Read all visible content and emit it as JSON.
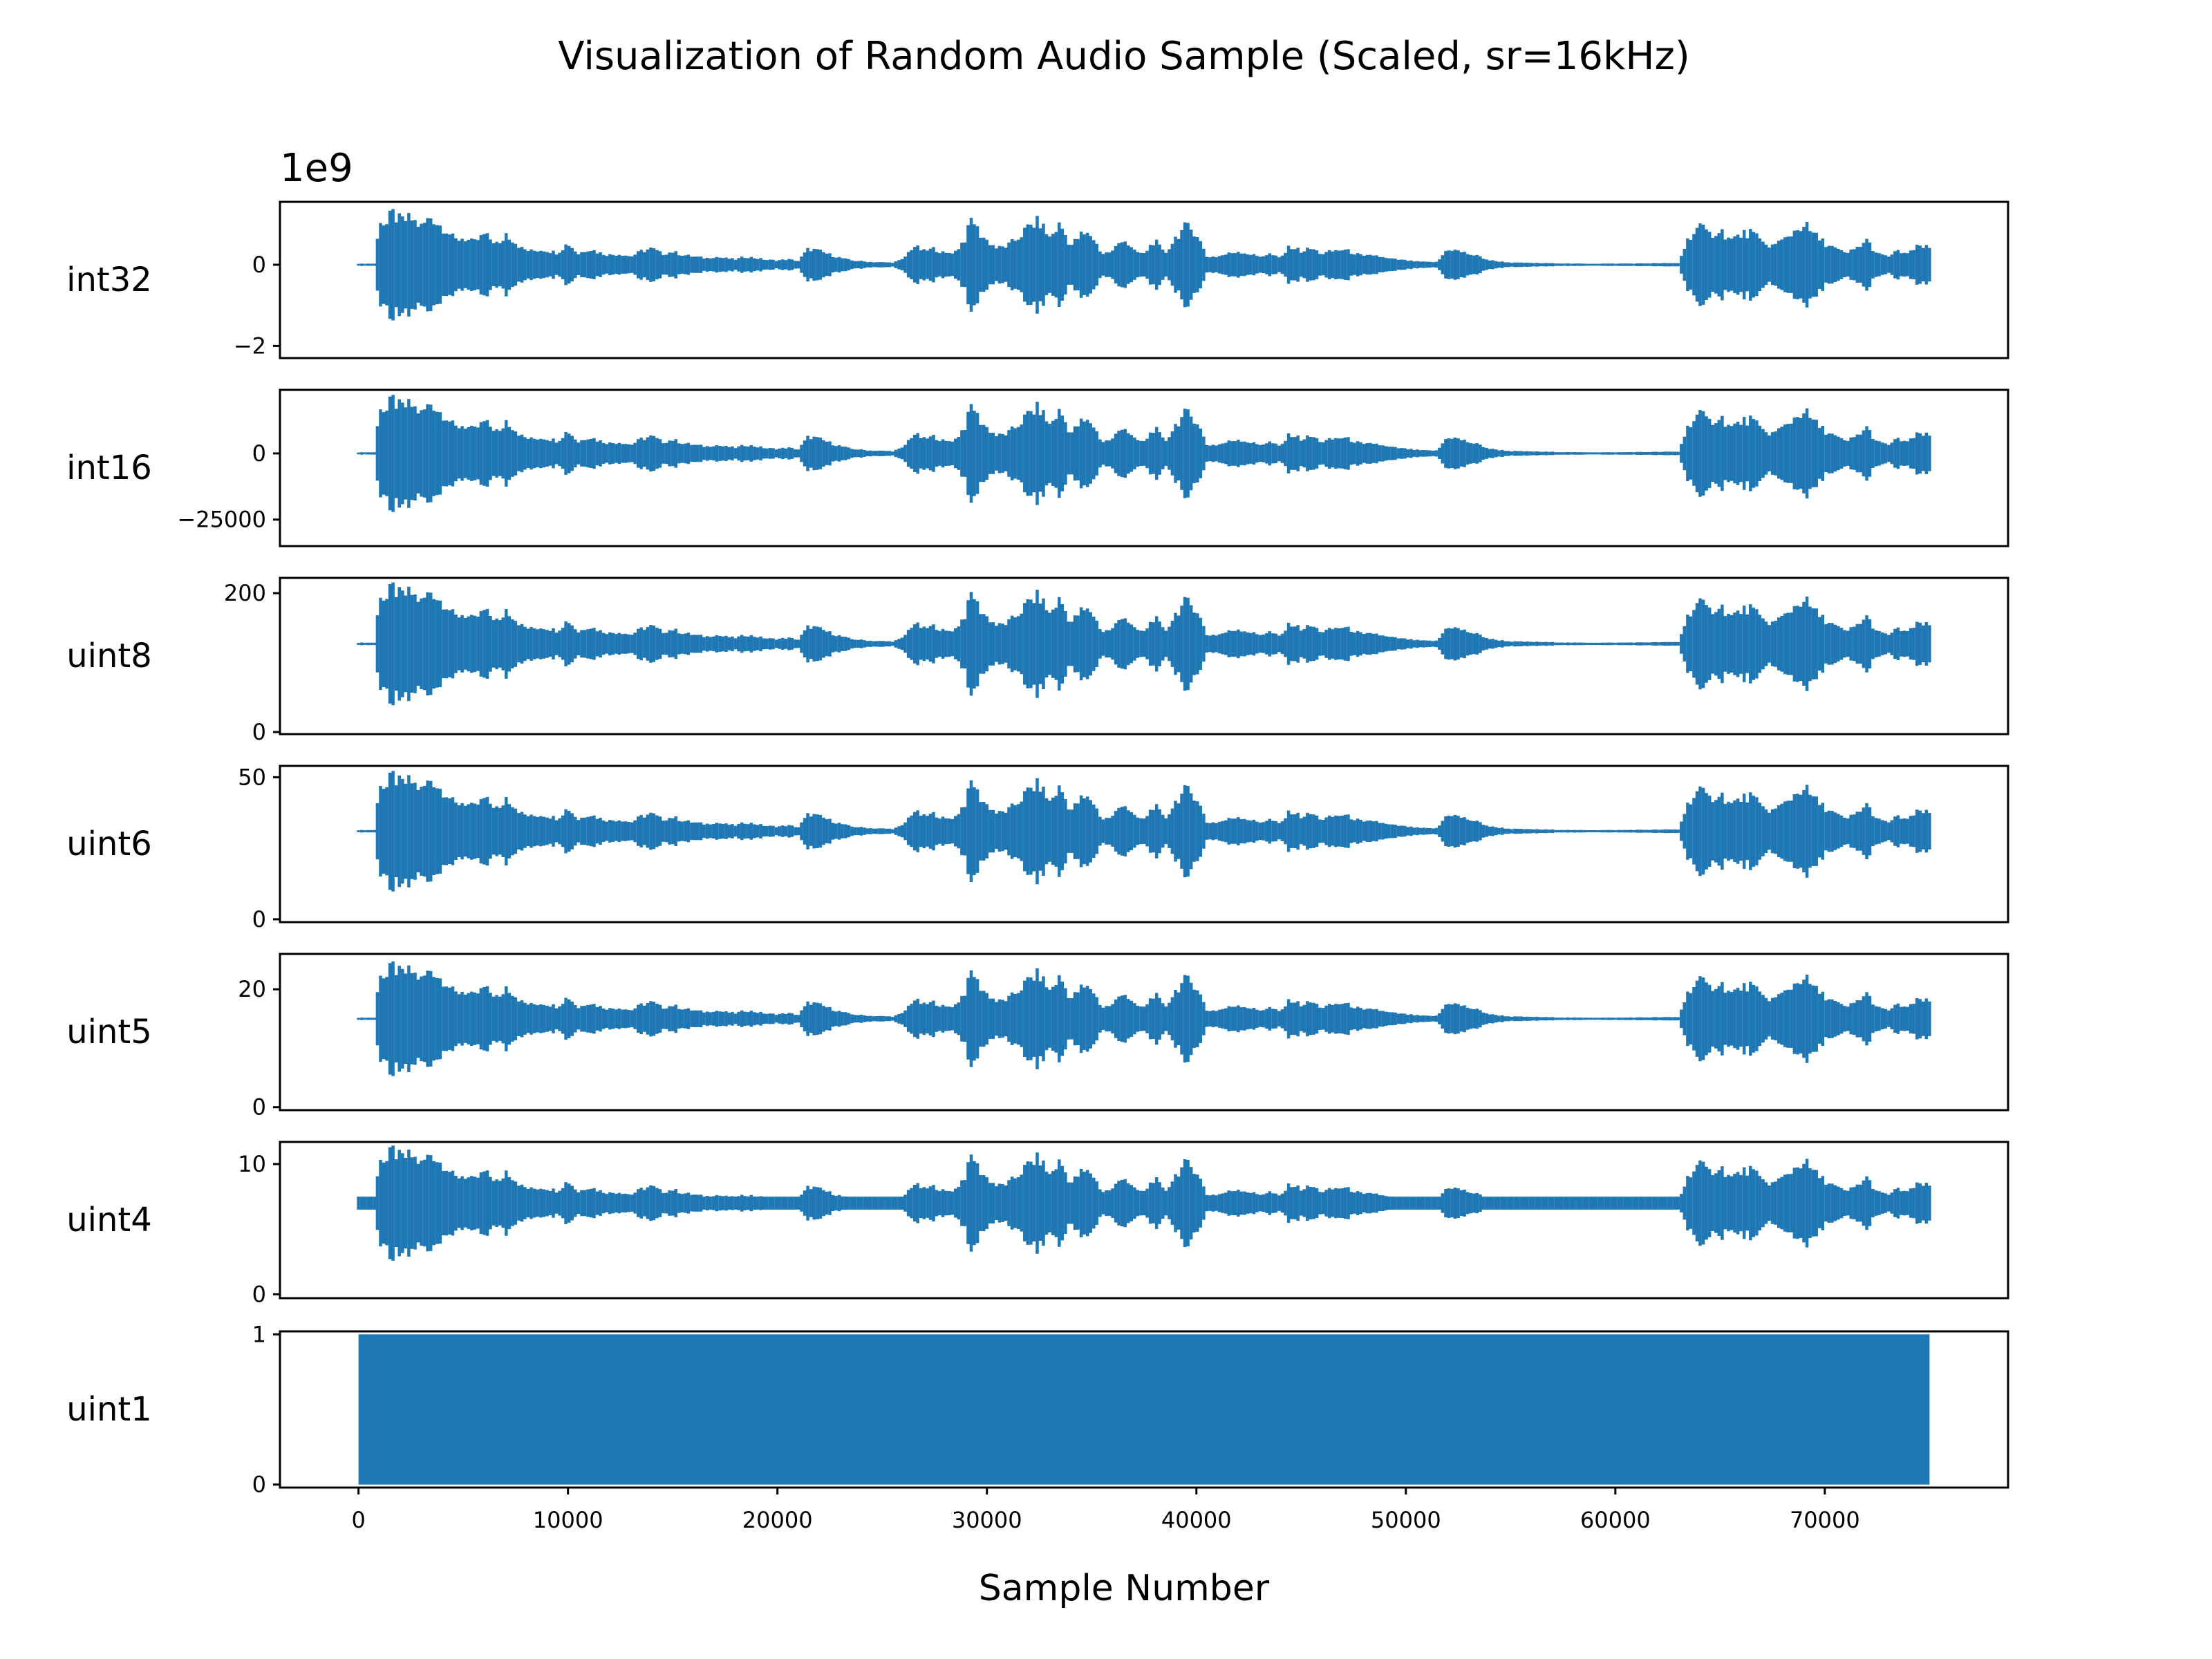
{
  "chart_data": {
    "type": "line",
    "title": "Visualization of Random Audio Sample (Scaled, sr=16kHz)",
    "xlabel": "Sample Number",
    "xlim": [
      -3750,
      78750
    ],
    "xticks": [
      0,
      10000,
      20000,
      30000,
      40000,
      50000,
      60000,
      70000
    ],
    "xtick_labels": [
      "0",
      "10000",
      "20000",
      "30000",
      "40000",
      "50000",
      "60000",
      "70000"
    ],
    "num_samples": 75000,
    "grid": false,
    "color": "#1f77b4",
    "envelope": {
      "x": [
        0,
        800,
        1000,
        1300,
        1600,
        2000,
        2500,
        3000,
        3500,
        3800,
        4200,
        4600,
        5000,
        5500,
        6000,
        6800,
        7000,
        7800,
        8200,
        8800,
        9500,
        10000,
        10500,
        11000,
        11500,
        12000,
        12500,
        13000,
        13500,
        14000,
        14500,
        15000,
        15500,
        16000,
        16600,
        17000,
        17500,
        18000,
        18500,
        19000,
        19500,
        20000,
        20500,
        21000,
        21500,
        22000,
        22800,
        23500,
        24500,
        25500,
        26000,
        26500,
        27000,
        27500,
        28000,
        28500,
        29000,
        29300,
        29600,
        30000,
        30500,
        31000,
        31500,
        32000,
        32500,
        33000,
        33500,
        34000,
        34500,
        35000,
        35500,
        36000,
        36500,
        37000,
        37500,
        38000,
        38500,
        39000,
        39500,
        40000,
        40500,
        41000,
        41500,
        42000,
        42500,
        43000,
        43500,
        44000,
        44500,
        45000,
        45500,
        46000,
        46500,
        47000,
        47500,
        48000,
        48500,
        49000,
        49500,
        50000,
        50500,
        51000,
        51500,
        52000,
        52500,
        53000,
        53500,
        54000,
        55000,
        58000,
        60000,
        63000,
        63500,
        64000,
        64500,
        65000,
        65500,
        66000,
        66500,
        67000,
        67500,
        68000,
        68500,
        69000,
        69500,
        70000,
        70500,
        71000,
        71500,
        72000,
        72500,
        73000,
        73500,
        74000,
        74500,
        75000
      ],
      "a": [
        0.02,
        0.02,
        0.9,
        0.7,
        0.95,
        0.8,
        0.85,
        0.7,
        0.9,
        0.75,
        0.65,
        0.45,
        0.5,
        0.4,
        0.55,
        0.35,
        0.6,
        0.3,
        0.25,
        0.28,
        0.22,
        0.4,
        0.2,
        0.3,
        0.22,
        0.18,
        0.2,
        0.15,
        0.25,
        0.3,
        0.2,
        0.24,
        0.18,
        0.15,
        0.12,
        0.15,
        0.12,
        0.1,
        0.15,
        0.12,
        0.09,
        0.08,
        0.1,
        0.07,
        0.3,
        0.25,
        0.15,
        0.08,
        0.05,
        0.04,
        0.1,
        0.35,
        0.25,
        0.3,
        0.2,
        0.25,
        0.5,
        0.9,
        0.6,
        0.45,
        0.3,
        0.35,
        0.5,
        0.7,
        0.8,
        0.5,
        0.75,
        0.35,
        0.55,
        0.55,
        0.2,
        0.25,
        0.5,
        0.25,
        0.2,
        0.45,
        0.2,
        0.5,
        0.7,
        0.6,
        0.15,
        0.15,
        0.2,
        0.25,
        0.2,
        0.15,
        0.2,
        0.12,
        0.35,
        0.25,
        0.3,
        0.2,
        0.25,
        0.28,
        0.22,
        0.15,
        0.18,
        0.12,
        0.1,
        0.08,
        0.06,
        0.05,
        0.05,
        0.3,
        0.25,
        0.2,
        0.15,
        0.08,
        0.04,
        0.02,
        0.02,
        0.03,
        0.5,
        0.7,
        0.55,
        0.65,
        0.45,
        0.55,
        0.6,
        0.4,
        0.35,
        0.45,
        0.6,
        0.75,
        0.55,
        0.4,
        0.3,
        0.2,
        0.3,
        0.45,
        0.2,
        0.15,
        0.25,
        0.2,
        0.35,
        0.3
      ]
    },
    "subplots": [
      {
        "ylabel": "int32",
        "offset_text": "1e9",
        "ylim": [
          -2.3,
          1.55
        ],
        "yticks": [
          0,
          -2
        ],
        "ytick_labels": [
          "0",
          "−2"
        ],
        "center": 0,
        "half_range": 1.55
      },
      {
        "ylabel": "int16",
        "ylim": [
          -35000,
          24000
        ],
        "yticks": [
          0,
          -25000
        ],
        "ytick_labels": [
          "0",
          "−25000"
        ],
        "center": 0,
        "half_range": 25000
      },
      {
        "ylabel": "uint8",
        "ylim": [
          -3,
          222
        ],
        "yticks": [
          0,
          200
        ],
        "ytick_labels": [
          "0",
          "200"
        ],
        "center": 127,
        "half_range": 100
      },
      {
        "ylabel": "uint6",
        "ylim": [
          -1,
          54
        ],
        "yticks": [
          0,
          50
        ],
        "ytick_labels": [
          "0",
          "50"
        ],
        "center": 31,
        "half_range": 24
      },
      {
        "ylabel": "uint5",
        "ylim": [
          -0.5,
          26
        ],
        "yticks": [
          0,
          20
        ],
        "ytick_labels": [
          "0",
          "20"
        ],
        "center": 15,
        "half_range": 11
      },
      {
        "ylabel": "uint4",
        "ylim": [
          -0.3,
          11.7
        ],
        "yticks": [
          0,
          10
        ],
        "ytick_labels": [
          "0",
          "10"
        ],
        "center": 7,
        "half_range": 5,
        "min_half": 0.5
      },
      {
        "ylabel": "uint1",
        "ylim": [
          -0.02,
          1.02
        ],
        "yticks": [
          0,
          1
        ],
        "ytick_labels": [
          "0",
          "1"
        ],
        "center": 0.5,
        "half_range": 0.5,
        "filled": true
      }
    ]
  }
}
